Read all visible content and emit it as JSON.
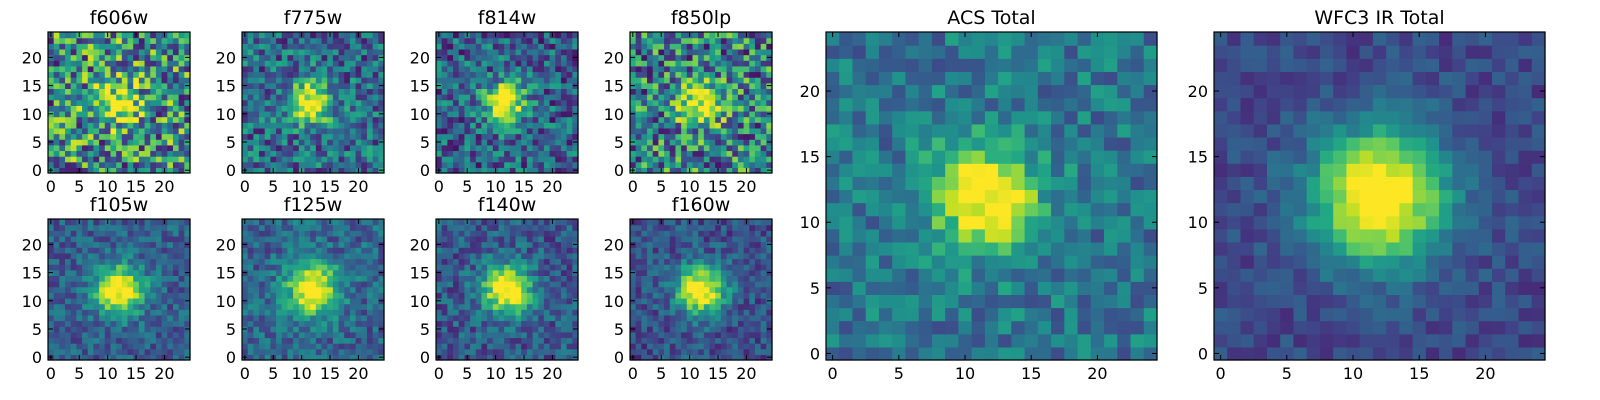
{
  "chart_data": [
    {
      "type": "heatmap",
      "title": "f606w",
      "xlim": [
        0,
        24
      ],
      "ylim": [
        0,
        24
      ],
      "xticks": [
        0,
        5,
        10,
        15,
        20
      ],
      "yticks": [
        0,
        5,
        10,
        15,
        20
      ],
      "grid": [
        25,
        25
      ],
      "colormap": "viridis",
      "center": [
        11.5,
        12
      ],
      "peak_sigma": 2.6,
      "noise": 0.55,
      "background": 0.5
    },
    {
      "type": "heatmap",
      "title": "f775w",
      "xlim": [
        0,
        24
      ],
      "ylim": [
        0,
        24
      ],
      "xticks": [
        0,
        5,
        10,
        15,
        20
      ],
      "yticks": [
        0,
        5,
        10,
        15,
        20
      ],
      "grid": [
        25,
        25
      ],
      "colormap": "viridis",
      "center": [
        11.5,
        12
      ],
      "peak_sigma": 2.6,
      "noise": 0.35,
      "background": 0.35
    },
    {
      "type": "heatmap",
      "title": "f814w",
      "xlim": [
        0,
        24
      ],
      "ylim": [
        0,
        24
      ],
      "xticks": [
        0,
        5,
        10,
        15,
        20
      ],
      "yticks": [
        0,
        5,
        10,
        15,
        20
      ],
      "grid": [
        25,
        25
      ],
      "colormap": "viridis",
      "center": [
        11.5,
        12
      ],
      "peak_sigma": 2.5,
      "noise": 0.35,
      "background": 0.32
    },
    {
      "type": "heatmap",
      "title": "f850lp",
      "xlim": [
        0,
        24
      ],
      "ylim": [
        0,
        24
      ],
      "xticks": [
        0,
        5,
        10,
        15,
        20
      ],
      "yticks": [
        0,
        5,
        10,
        15,
        20
      ],
      "grid": [
        25,
        25
      ],
      "colormap": "viridis",
      "center": [
        12,
        12
      ],
      "peak_sigma": 2.6,
      "noise": 0.5,
      "background": 0.45
    },
    {
      "type": "heatmap",
      "title": "f105w",
      "xlim": [
        0,
        24
      ],
      "ylim": [
        0,
        24
      ],
      "xticks": [
        0,
        5,
        10,
        15,
        20
      ],
      "yticks": [
        0,
        5,
        10,
        15,
        20
      ],
      "grid": [
        25,
        25
      ],
      "colormap": "viridis",
      "center": [
        12,
        12
      ],
      "peak_sigma": 3.0,
      "noise": 0.2,
      "background": 0.3
    },
    {
      "type": "heatmap",
      "title": "f125w",
      "xlim": [
        0,
        24
      ],
      "ylim": [
        0,
        24
      ],
      "xticks": [
        0,
        5,
        10,
        15,
        20
      ],
      "yticks": [
        0,
        5,
        10,
        15,
        20
      ],
      "grid": [
        25,
        25
      ],
      "colormap": "viridis",
      "center": [
        12,
        12
      ],
      "peak_sigma": 3.2,
      "noise": 0.22,
      "background": 0.33
    },
    {
      "type": "heatmap",
      "title": "f140w",
      "xlim": [
        0,
        24
      ],
      "ylim": [
        0,
        24
      ],
      "xticks": [
        0,
        5,
        10,
        15,
        20
      ],
      "yticks": [
        0,
        5,
        10,
        15,
        20
      ],
      "grid": [
        25,
        25
      ],
      "colormap": "viridis",
      "center": [
        12,
        12
      ],
      "peak_sigma": 3.0,
      "noise": 0.22,
      "background": 0.28
    },
    {
      "type": "heatmap",
      "title": "f160w",
      "xlim": [
        0,
        24
      ],
      "ylim": [
        0,
        24
      ],
      "xticks": [
        0,
        5,
        10,
        15,
        20
      ],
      "yticks": [
        0,
        5,
        10,
        15,
        20
      ],
      "grid": [
        25,
        25
      ],
      "colormap": "viridis",
      "center": [
        12,
        12
      ],
      "peak_sigma": 3.0,
      "noise": 0.2,
      "background": 0.25
    },
    {
      "type": "heatmap",
      "title": "ACS Total",
      "xlim": [
        0,
        24
      ],
      "ylim": [
        0,
        24
      ],
      "xticks": [
        0,
        5,
        10,
        15,
        20
      ],
      "yticks": [
        0,
        5,
        10,
        15,
        20
      ],
      "grid": [
        25,
        25
      ],
      "colormap": "viridis",
      "center": [
        11.5,
        12
      ],
      "peak_sigma": 2.8,
      "noise": 0.22,
      "background": 0.4
    },
    {
      "type": "heatmap",
      "title": "WFC3 IR Total",
      "xlim": [
        0,
        24
      ],
      "ylim": [
        0,
        24
      ],
      "xticks": [
        0,
        5,
        10,
        15,
        20
      ],
      "yticks": [
        0,
        5,
        10,
        15,
        20
      ],
      "grid": [
        25,
        25
      ],
      "colormap": "viridis",
      "center": [
        12,
        12
      ],
      "peak_sigma": 3.6,
      "noise": 0.12,
      "background": 0.22
    }
  ]
}
